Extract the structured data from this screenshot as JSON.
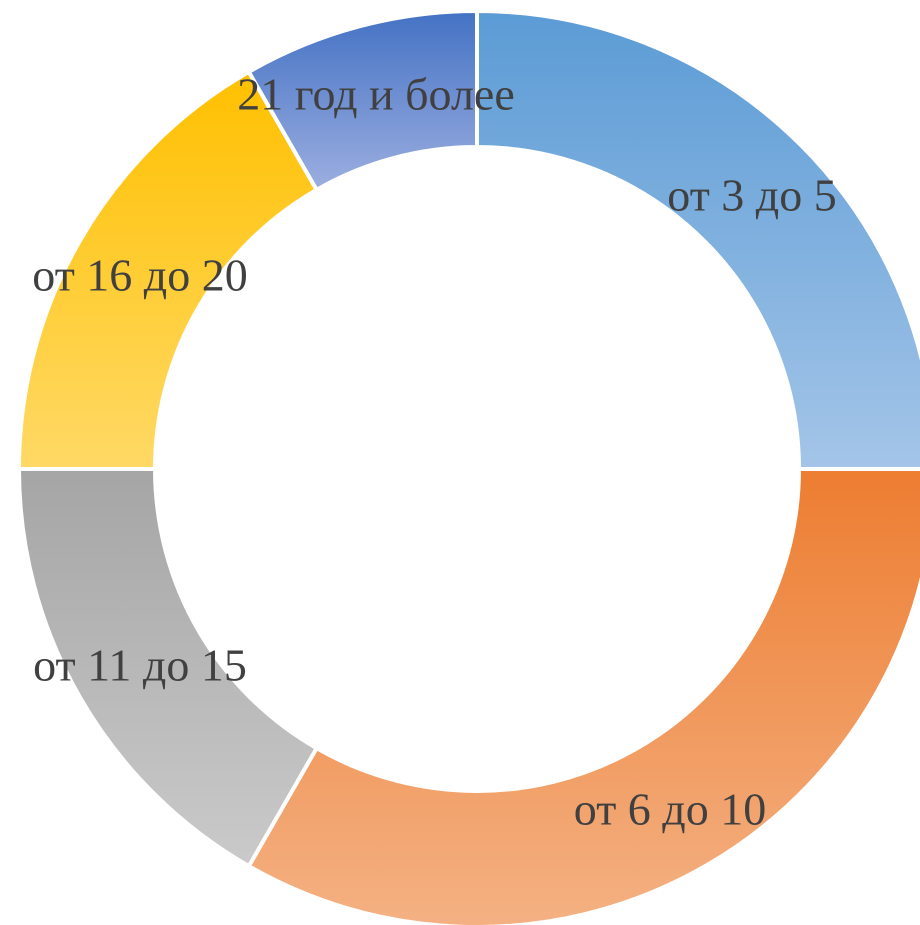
{
  "chart_data": {
    "type": "pie",
    "variant": "donut",
    "title": "",
    "series": [
      {
        "categories": [
          "от 3 до 5",
          "от 6 до 10",
          "от 11 до 15",
          "от 16 до 20",
          "21 год и более"
        ],
        "values": [
          25,
          33.3,
          16.7,
          16.7,
          8.3
        ],
        "colors": [
          [
            "#5b9bd5",
            "#a4c5e8"
          ],
          [
            "#ed7d31",
            "#f4b183"
          ],
          [
            "#a5a5a5",
            "#cacaca"
          ],
          [
            "#ffc000",
            "#ffd966"
          ],
          [
            "#4472c4",
            "#9caee0"
          ]
        ]
      }
    ],
    "legend": "none",
    "data_labels": "category-name"
  }
}
